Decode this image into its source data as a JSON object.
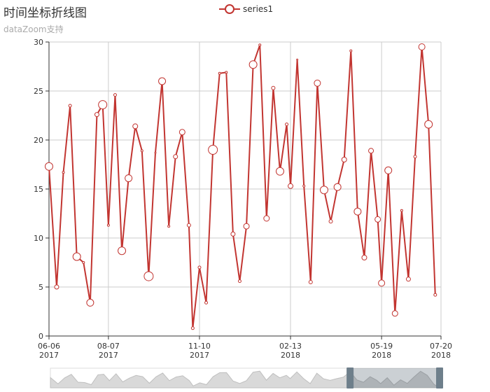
{
  "title": "时间坐标折线图",
  "subtitle": "dataZoom支持",
  "legend": {
    "label": "series1",
    "color": "#c23531"
  },
  "chart_data": {
    "type": "line",
    "title": "时间坐标折线图",
    "subtitle": "dataZoom支持",
    "series": [
      {
        "name": "series1",
        "points": [
          [
            "2017-06-06",
            17.3,
            11
          ],
          [
            "2017-06-14",
            5.0,
            6
          ],
          [
            "2017-06-21",
            16.7,
            3
          ],
          [
            "2017-06-28",
            23.5,
            4
          ],
          [
            "2017-07-05",
            8.1,
            11
          ],
          [
            "2017-07-12",
            7.5,
            3
          ],
          [
            "2017-07-19",
            3.4,
            10
          ],
          [
            "2017-07-26",
            22.6,
            6
          ],
          [
            "2017-08-01",
            23.6,
            12
          ],
          [
            "2017-08-07",
            11.3,
            3
          ],
          [
            "2017-08-14",
            24.6,
            4
          ],
          [
            "2017-08-21",
            8.7,
            11
          ],
          [
            "2017-08-28",
            16.1,
            10
          ],
          [
            "2017-09-04",
            21.4,
            7
          ],
          [
            "2017-09-11",
            18.9,
            3
          ],
          [
            "2017-09-18",
            6.1,
            13
          ],
          [
            "2017-09-25",
            18.7,
            2
          ],
          [
            "2017-10-02",
            26.0,
            10
          ],
          [
            "2017-10-09",
            11.2,
            3
          ],
          [
            "2017-10-16",
            18.3,
            6
          ],
          [
            "2017-10-23",
            20.8,
            8
          ],
          [
            "2017-10-30",
            11.3,
            5
          ],
          [
            "2017-11-03",
            0.8,
            4
          ],
          [
            "2017-11-10",
            7.0,
            4
          ],
          [
            "2017-11-17",
            3.4,
            4
          ],
          [
            "2017-11-24",
            19.0,
            13
          ],
          [
            "2017-12-01",
            26.8,
            3
          ],
          [
            "2017-12-08",
            26.9,
            3
          ],
          [
            "2017-12-15",
            10.4,
            6
          ],
          [
            "2017-12-22",
            5.6,
            4
          ],
          [
            "2017-12-29",
            11.2,
            8
          ],
          [
            "2018-01-05",
            27.7,
            11
          ],
          [
            "2018-01-12",
            29.7,
            3
          ],
          [
            "2018-01-19",
            12.0,
            8
          ],
          [
            "2018-01-26",
            25.3,
            5
          ],
          [
            "2018-02-02",
            16.8,
            11
          ],
          [
            "2018-02-09",
            21.6,
            4
          ],
          [
            "2018-02-13",
            15.3,
            7
          ],
          [
            "2018-02-20",
            28.2,
            2
          ],
          [
            "2018-02-27",
            15.3,
            3
          ],
          [
            "2018-03-06",
            5.5,
            5
          ],
          [
            "2018-03-13",
            25.8,
            9
          ],
          [
            "2018-03-20",
            14.9,
            11
          ],
          [
            "2018-03-27",
            11.7,
            5
          ],
          [
            "2018-04-03",
            15.2,
            10
          ],
          [
            "2018-04-10",
            18.0,
            7
          ],
          [
            "2018-04-17",
            29.1,
            3
          ],
          [
            "2018-04-24",
            12.7,
            10
          ],
          [
            "2018-05-01",
            8.0,
            7
          ],
          [
            "2018-05-08",
            18.9,
            7
          ],
          [
            "2018-05-15",
            11.9,
            8
          ],
          [
            "2018-05-19",
            5.4,
            9
          ],
          [
            "2018-05-26",
            16.9,
            10
          ],
          [
            "2018-06-02",
            2.3,
            8
          ],
          [
            "2018-06-09",
            12.8,
            3
          ],
          [
            "2018-06-16",
            5.8,
            6
          ],
          [
            "2018-06-23",
            18.3,
            4
          ],
          [
            "2018-06-30",
            29.5,
            9
          ],
          [
            "2018-07-07",
            21.6,
            11
          ],
          [
            "2018-07-14",
            4.2,
            4
          ]
        ]
      }
    ],
    "xlim": [
      "2017-06-06",
      "2018-07-20"
    ],
    "ylim": [
      0,
      30
    ],
    "y_ticks": [
      "0",
      "5",
      "10",
      "15",
      "20",
      "25",
      "30"
    ],
    "x_ticks": [
      {
        "date": "2017-06-06",
        "line1": "06-06",
        "line2": "2017"
      },
      {
        "date": "2017-08-07",
        "line1": "08-07",
        "line2": "2017"
      },
      {
        "date": "2017-11-10",
        "line1": "11-10",
        "line2": "2017"
      },
      {
        "date": "2018-02-13",
        "line1": "02-13",
        "line2": "2018"
      },
      {
        "date": "2018-05-19",
        "line1": "05-19",
        "line2": "2018"
      },
      {
        "date": "2018-07-20",
        "line1": "07-20",
        "line2": "2018"
      }
    ],
    "grid": true,
    "legend_position": "top-center",
    "datazoom": {
      "start": 0.77,
      "end": 1.0
    }
  }
}
